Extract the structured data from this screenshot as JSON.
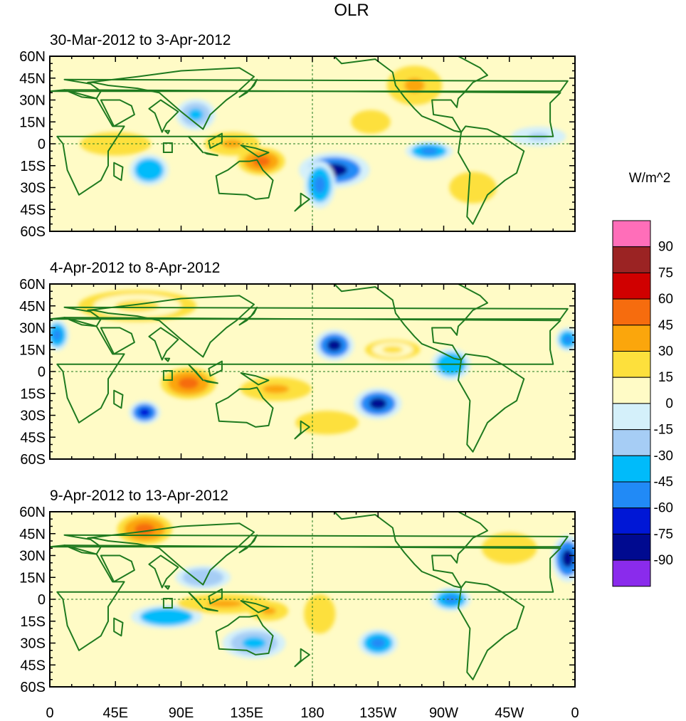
{
  "chart_data": {
    "type": "heatmap",
    "title": "OLR",
    "units": "W/m^2",
    "panels": [
      {
        "subtitle": "30-Mar-2012 to 3-Apr-2012",
        "anomalies": [
          {
            "lon": 195,
            "lat": -18,
            "value": -85,
            "rx": 18,
            "ry": 9
          },
          {
            "lon": 185,
            "lat": -28,
            "value": -50,
            "rx": 8,
            "ry": 12
          },
          {
            "lon": 145,
            "lat": -12,
            "value": 50,
            "rx": 12,
            "ry": 7
          },
          {
            "lon": 125,
            "lat": 0,
            "value": 30,
            "rx": 14,
            "ry": 6
          },
          {
            "lon": 100,
            "lat": 20,
            "value": -40,
            "rx": 10,
            "ry": 8
          },
          {
            "lon": 68,
            "lat": -18,
            "value": -45,
            "rx": 10,
            "ry": 8
          },
          {
            "lon": 45,
            "lat": 0,
            "value": 25,
            "rx": 18,
            "ry": 6
          },
          {
            "lon": 260,
            "lat": -5,
            "value": -55,
            "rx": 12,
            "ry": 5
          },
          {
            "lon": 250,
            "lat": 40,
            "value": 35,
            "rx": 14,
            "ry": 10
          },
          {
            "lon": 220,
            "lat": 15,
            "value": 25,
            "rx": 10,
            "ry": 6
          },
          {
            "lon": 290,
            "lat": -30,
            "value": 25,
            "rx": 12,
            "ry": 8
          },
          {
            "lon": 335,
            "lat": 5,
            "value": -20,
            "rx": 14,
            "ry": 5
          }
        ]
      },
      {
        "subtitle": "4-Apr-2012 to 8-Apr-2012",
        "anomalies": [
          {
            "lon": 195,
            "lat": 18,
            "value": -80,
            "rx": 10,
            "ry": 8
          },
          {
            "lon": 225,
            "lat": -22,
            "value": -85,
            "rx": 12,
            "ry": 8
          },
          {
            "lon": 95,
            "lat": -8,
            "value": 45,
            "rx": 14,
            "ry": 8
          },
          {
            "lon": 155,
            "lat": -12,
            "value": 40,
            "rx": 18,
            "ry": 6
          },
          {
            "lon": 65,
            "lat": -28,
            "value": -65,
            "rx": 8,
            "ry": 6
          },
          {
            "lon": 5,
            "lat": 25,
            "value": -55,
            "rx": 6,
            "ry": 8
          },
          {
            "lon": 355,
            "lat": 22,
            "value": -60,
            "rx": 6,
            "ry": 6
          },
          {
            "lon": 275,
            "lat": 5,
            "value": -45,
            "rx": 10,
            "ry": 8
          },
          {
            "lon": 60,
            "lat": 45,
            "value": 20,
            "rx": 30,
            "ry": 8
          },
          {
            "lon": 235,
            "lat": 15,
            "value": 20,
            "rx": 14,
            "ry": 5
          },
          {
            "lon": 190,
            "lat": -35,
            "value": 25,
            "rx": 16,
            "ry": 6
          }
        ]
      },
      {
        "subtitle": "9-Apr-2012 to 13-Apr-2012",
        "anomalies": [
          {
            "lon": 355,
            "lat": 28,
            "value": -80,
            "rx": 8,
            "ry": 12
          },
          {
            "lon": 80,
            "lat": -12,
            "value": -45,
            "rx": 18,
            "ry": 6
          },
          {
            "lon": 140,
            "lat": -30,
            "value": -40,
            "rx": 16,
            "ry": 8
          },
          {
            "lon": 225,
            "lat": -30,
            "value": -50,
            "rx": 10,
            "ry": 7
          },
          {
            "lon": 275,
            "lat": 0,
            "value": -55,
            "rx": 10,
            "ry": 6
          },
          {
            "lon": 65,
            "lat": 48,
            "value": 45,
            "rx": 14,
            "ry": 8
          },
          {
            "lon": 120,
            "lat": -3,
            "value": 30,
            "rx": 24,
            "ry": 5
          },
          {
            "lon": 150,
            "lat": -8,
            "value": 35,
            "rx": 10,
            "ry": 5
          },
          {
            "lon": 185,
            "lat": -10,
            "value": 25,
            "rx": 8,
            "ry": 10
          },
          {
            "lon": 315,
            "lat": 35,
            "value": 25,
            "rx": 14,
            "ry": 8
          },
          {
            "lon": 105,
            "lat": 15,
            "value": -30,
            "rx": 14,
            "ry": 6
          }
        ]
      }
    ],
    "x_ticks": [
      "0",
      "45E",
      "90E",
      "135E",
      "180",
      "135W",
      "90W",
      "45W",
      "0"
    ],
    "y_ticks": [
      "60N",
      "45N",
      "30N",
      "15N",
      "0",
      "15S",
      "30S",
      "45S",
      "60S"
    ],
    "xlim": [
      0,
      360
    ],
    "ylim": [
      -60,
      60
    ],
    "colorbar": {
      "labels": [
        "90",
        "75",
        "60",
        "45",
        "30",
        "15",
        "0",
        "-15",
        "-30",
        "-45",
        "-60",
        "-75",
        "-90"
      ],
      "colors": [
        "#ff6eb9",
        "#9b2323",
        "#d00000",
        "#f66c0e",
        "#fba60c",
        "#fde03c",
        "#fffbc6",
        "#d4f0fa",
        "#a6cdf5",
        "#00bbfa",
        "#218af6",
        "#0017d6",
        "#000a90",
        "#8a2bec"
      ]
    }
  }
}
